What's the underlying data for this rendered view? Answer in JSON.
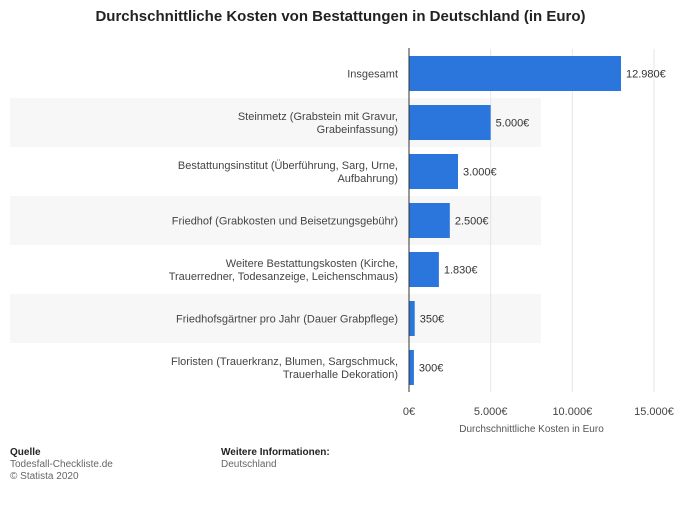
{
  "title": "Durchschnittliche Kosten von Bestattungen in Deutschland (in Euro)",
  "chart_data": {
    "type": "bar",
    "orientation": "horizontal",
    "categories": [
      [
        "Insgesamt"
      ],
      [
        "Steinmetz (Grabstein mit Gravur,",
        "Grabeinfassung)"
      ],
      [
        "Bestattungsinstitut (Überführung, Sarg, Urne,",
        "Aufbahrung)"
      ],
      [
        "Friedhof (Grabkosten und Beisetzungsgebühr)"
      ],
      [
        "Weitere Bestattungskosten (Kirche,",
        "Trauerredner, Todesanzeige, Leichenschmaus)"
      ],
      [
        "Friedhofsgärtner pro Jahr (Dauer Grabpflege)"
      ],
      [
        "Floristen (Trauerkranz, Blumen, Sargschmuck,",
        "Trauerhalle Dekoration)"
      ]
    ],
    "values": [
      12980,
      5000,
      3000,
      2500,
      1830,
      350,
      300
    ],
    "value_labels": [
      "12.980€",
      "5.000€",
      "3.000€",
      "2.500€",
      "1.830€",
      "350€",
      "300€"
    ],
    "xlim": [
      0,
      15000
    ],
    "ticks": [
      0,
      5000,
      10000,
      15000
    ],
    "tick_labels": [
      "0€",
      "5.000€",
      "10.000€",
      "15.000€"
    ],
    "xlabel": "Durchschnittliche Kosten in Euro",
    "bar_color": "#2a76dd"
  },
  "footer": {
    "source_heading": "Quelle",
    "source_lines": [
      "Todesfall-Checkliste.de",
      "© Statista 2020"
    ],
    "info_heading": "Weitere Informationen:",
    "info_lines": [
      "Deutschland"
    ]
  }
}
